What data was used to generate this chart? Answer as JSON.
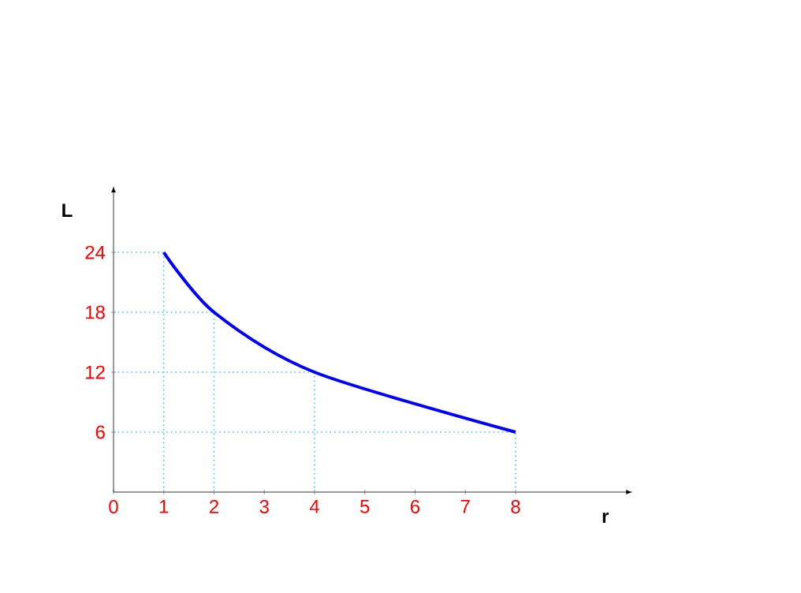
{
  "chart_data": {
    "type": "line",
    "xlabel": "r",
    "ylabel": "L",
    "x": [
      1,
      2,
      4,
      8
    ],
    "series": [
      {
        "color": "#0000ff",
        "values": [
          24,
          18,
          12,
          6
        ]
      }
    ],
    "xlim": [
      0,
      10.2
    ],
    "ylim": [
      0,
      30
    ],
    "xticks": [
      0,
      1,
      2,
      3,
      4,
      5,
      6,
      7,
      8
    ],
    "yticks": [
      6,
      12,
      18,
      24
    ],
    "ref_lines": [
      {
        "axis": "y",
        "value": 24,
        "color": "#33ccff",
        "line_style": "dotted"
      },
      {
        "axis": "y",
        "value": 18,
        "color": "#33ccff",
        "line_style": "dotted"
      },
      {
        "axis": "y",
        "value": 12,
        "color": "#33ccff",
        "line_style": "dotted"
      },
      {
        "axis": "y",
        "value": 6,
        "color": "#33ccff",
        "line_style": "dotted"
      },
      {
        "axis": "x",
        "value": 1,
        "color": "#33ccff",
        "line_style": "dotted"
      },
      {
        "axis": "x",
        "value": 2,
        "color": "#33ccff",
        "line_style": "dotted"
      },
      {
        "axis": "x",
        "value": 4,
        "color": "#33ccff",
        "line_style": "dotted"
      },
      {
        "axis": "x",
        "value": 8,
        "color": "#33ccff",
        "line_style": "dotted"
      }
    ]
  }
}
